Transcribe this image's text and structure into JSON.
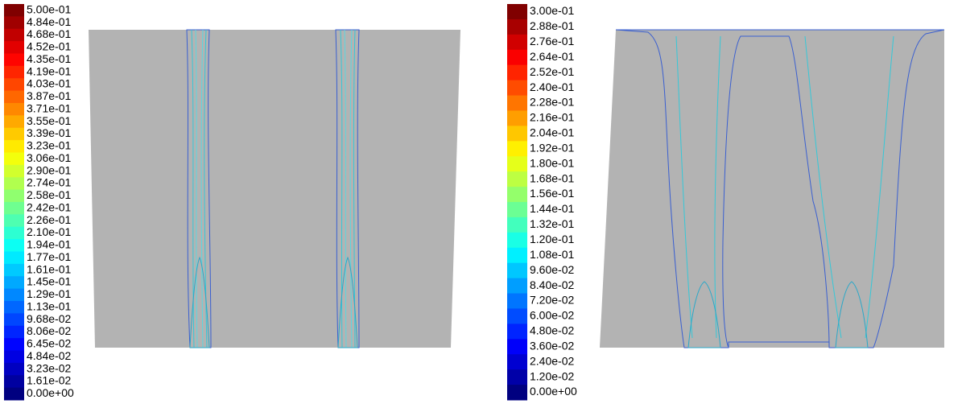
{
  "panels": [
    {
      "colorbar": {
        "labels": [
          "5.00e-01",
          "4.84e-01",
          "4.68e-01",
          "4.52e-01",
          "4.35e-01",
          "4.19e-01",
          "4.03e-01",
          "3.87e-01",
          "3.71e-01",
          "3.55e-01",
          "3.39e-01",
          "3.23e-01",
          "3.06e-01",
          "2.90e-01",
          "2.74e-01",
          "2.58e-01",
          "2.42e-01",
          "2.26e-01",
          "2.10e-01",
          "1.94e-01",
          "1.77e-01",
          "1.61e-01",
          "1.45e-01",
          "1.29e-01",
          "1.13e-01",
          "9.68e-02",
          "8.06e-02",
          "6.45e-02",
          "4.84e-02",
          "3.23e-02",
          "1.61e-02",
          "0.00e+00"
        ]
      }
    },
    {
      "colorbar": {
        "labels": [
          "3.00e-01",
          "2.88e-01",
          "2.76e-01",
          "2.64e-01",
          "2.52e-01",
          "2.40e-01",
          "2.28e-01",
          "2.16e-01",
          "2.04e-01",
          "1.92e-01",
          "1.80e-01",
          "1.68e-01",
          "1.56e-01",
          "1.44e-01",
          "1.32e-01",
          "1.20e-01",
          "1.08e-01",
          "9.60e-02",
          "8.40e-02",
          "7.20e-02",
          "6.00e-02",
          "4.80e-02",
          "3.60e-02",
          "2.40e-02",
          "1.20e-02",
          "0.00e+00"
        ]
      }
    }
  ]
}
